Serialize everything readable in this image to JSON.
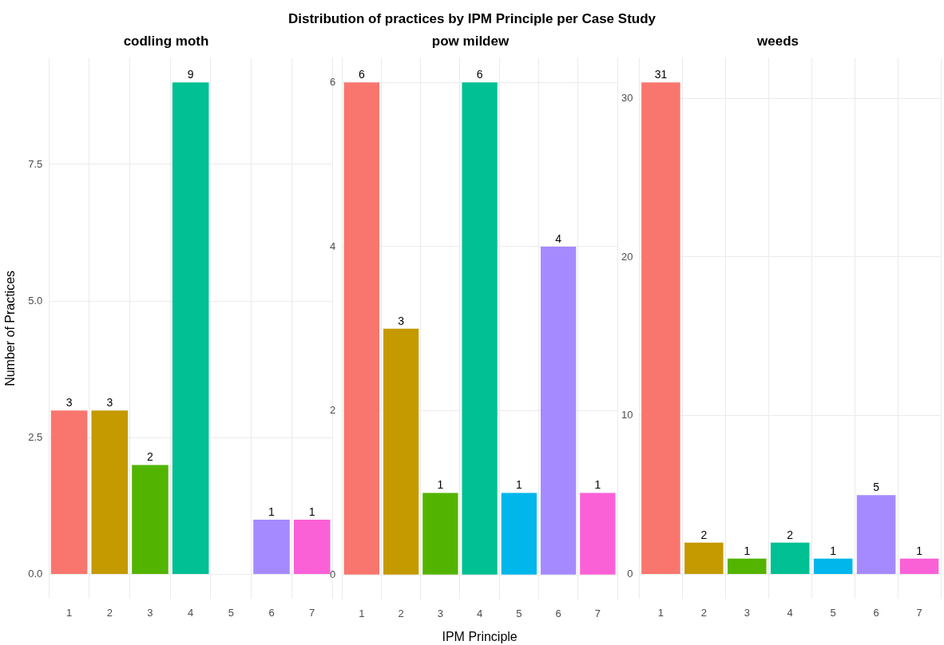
{
  "chart_data": [
    {
      "type": "bar",
      "title": "codling moth",
      "ylabel": "Number of Practices",
      "annotations": [
        "Distribution of practices by IPM Principle per Case Study"
      ],
      "categories": [
        "1",
        "2",
        "3",
        "4",
        "5",
        "6",
        "7"
      ],
      "values": [
        3,
        3,
        2,
        9,
        null,
        1,
        1
      ],
      "colors": [
        "#f8766d",
        "#c49a00",
        "#53b400",
        "#00c094",
        "#00b6eb",
        "#a58aff",
        "#fb61d7"
      ],
      "ylim": [
        -0.45,
        9.45
      ],
      "yticks": [
        {
          "value": 0,
          "label": "0.0"
        },
        {
          "value": 2.5,
          "label": "2.5"
        },
        {
          "value": 5,
          "label": "5.0"
        },
        {
          "value": 7.5,
          "label": "7.5"
        }
      ],
      "grid": true,
      "data_labels": true,
      "legend": false
    },
    {
      "type": "bar",
      "title": "pow mildew",
      "xlabel": "IPM Principle",
      "categories": [
        "1",
        "2",
        "3",
        "4",
        "5",
        "6",
        "7"
      ],
      "values": [
        6,
        3,
        1,
        6,
        1,
        4,
        1
      ],
      "colors": [
        "#f8766d",
        "#c49a00",
        "#53b400",
        "#00c094",
        "#00b6eb",
        "#a58aff",
        "#fb61d7"
      ],
      "ylim": [
        -0.3,
        6.3
      ],
      "yticks": [
        0,
        2,
        4,
        6
      ],
      "grid": true,
      "data_labels": true,
      "legend": false
    },
    {
      "type": "bar",
      "title": "weeds",
      "categories": [
        "1",
        "2",
        "3",
        "4",
        "5",
        "6",
        "7"
      ],
      "values": [
        31,
        2,
        1,
        2,
        1,
        5,
        1
      ],
      "colors": [
        "#f8766d",
        "#c49a00",
        "#53b400",
        "#00c094",
        "#00b6eb",
        "#a58aff",
        "#fb61d7"
      ],
      "ylim": [
        -1.55,
        32.55
      ],
      "yticks": [
        0,
        10,
        20,
        30
      ],
      "grid": true,
      "data_labels": true,
      "legend": false
    }
  ]
}
